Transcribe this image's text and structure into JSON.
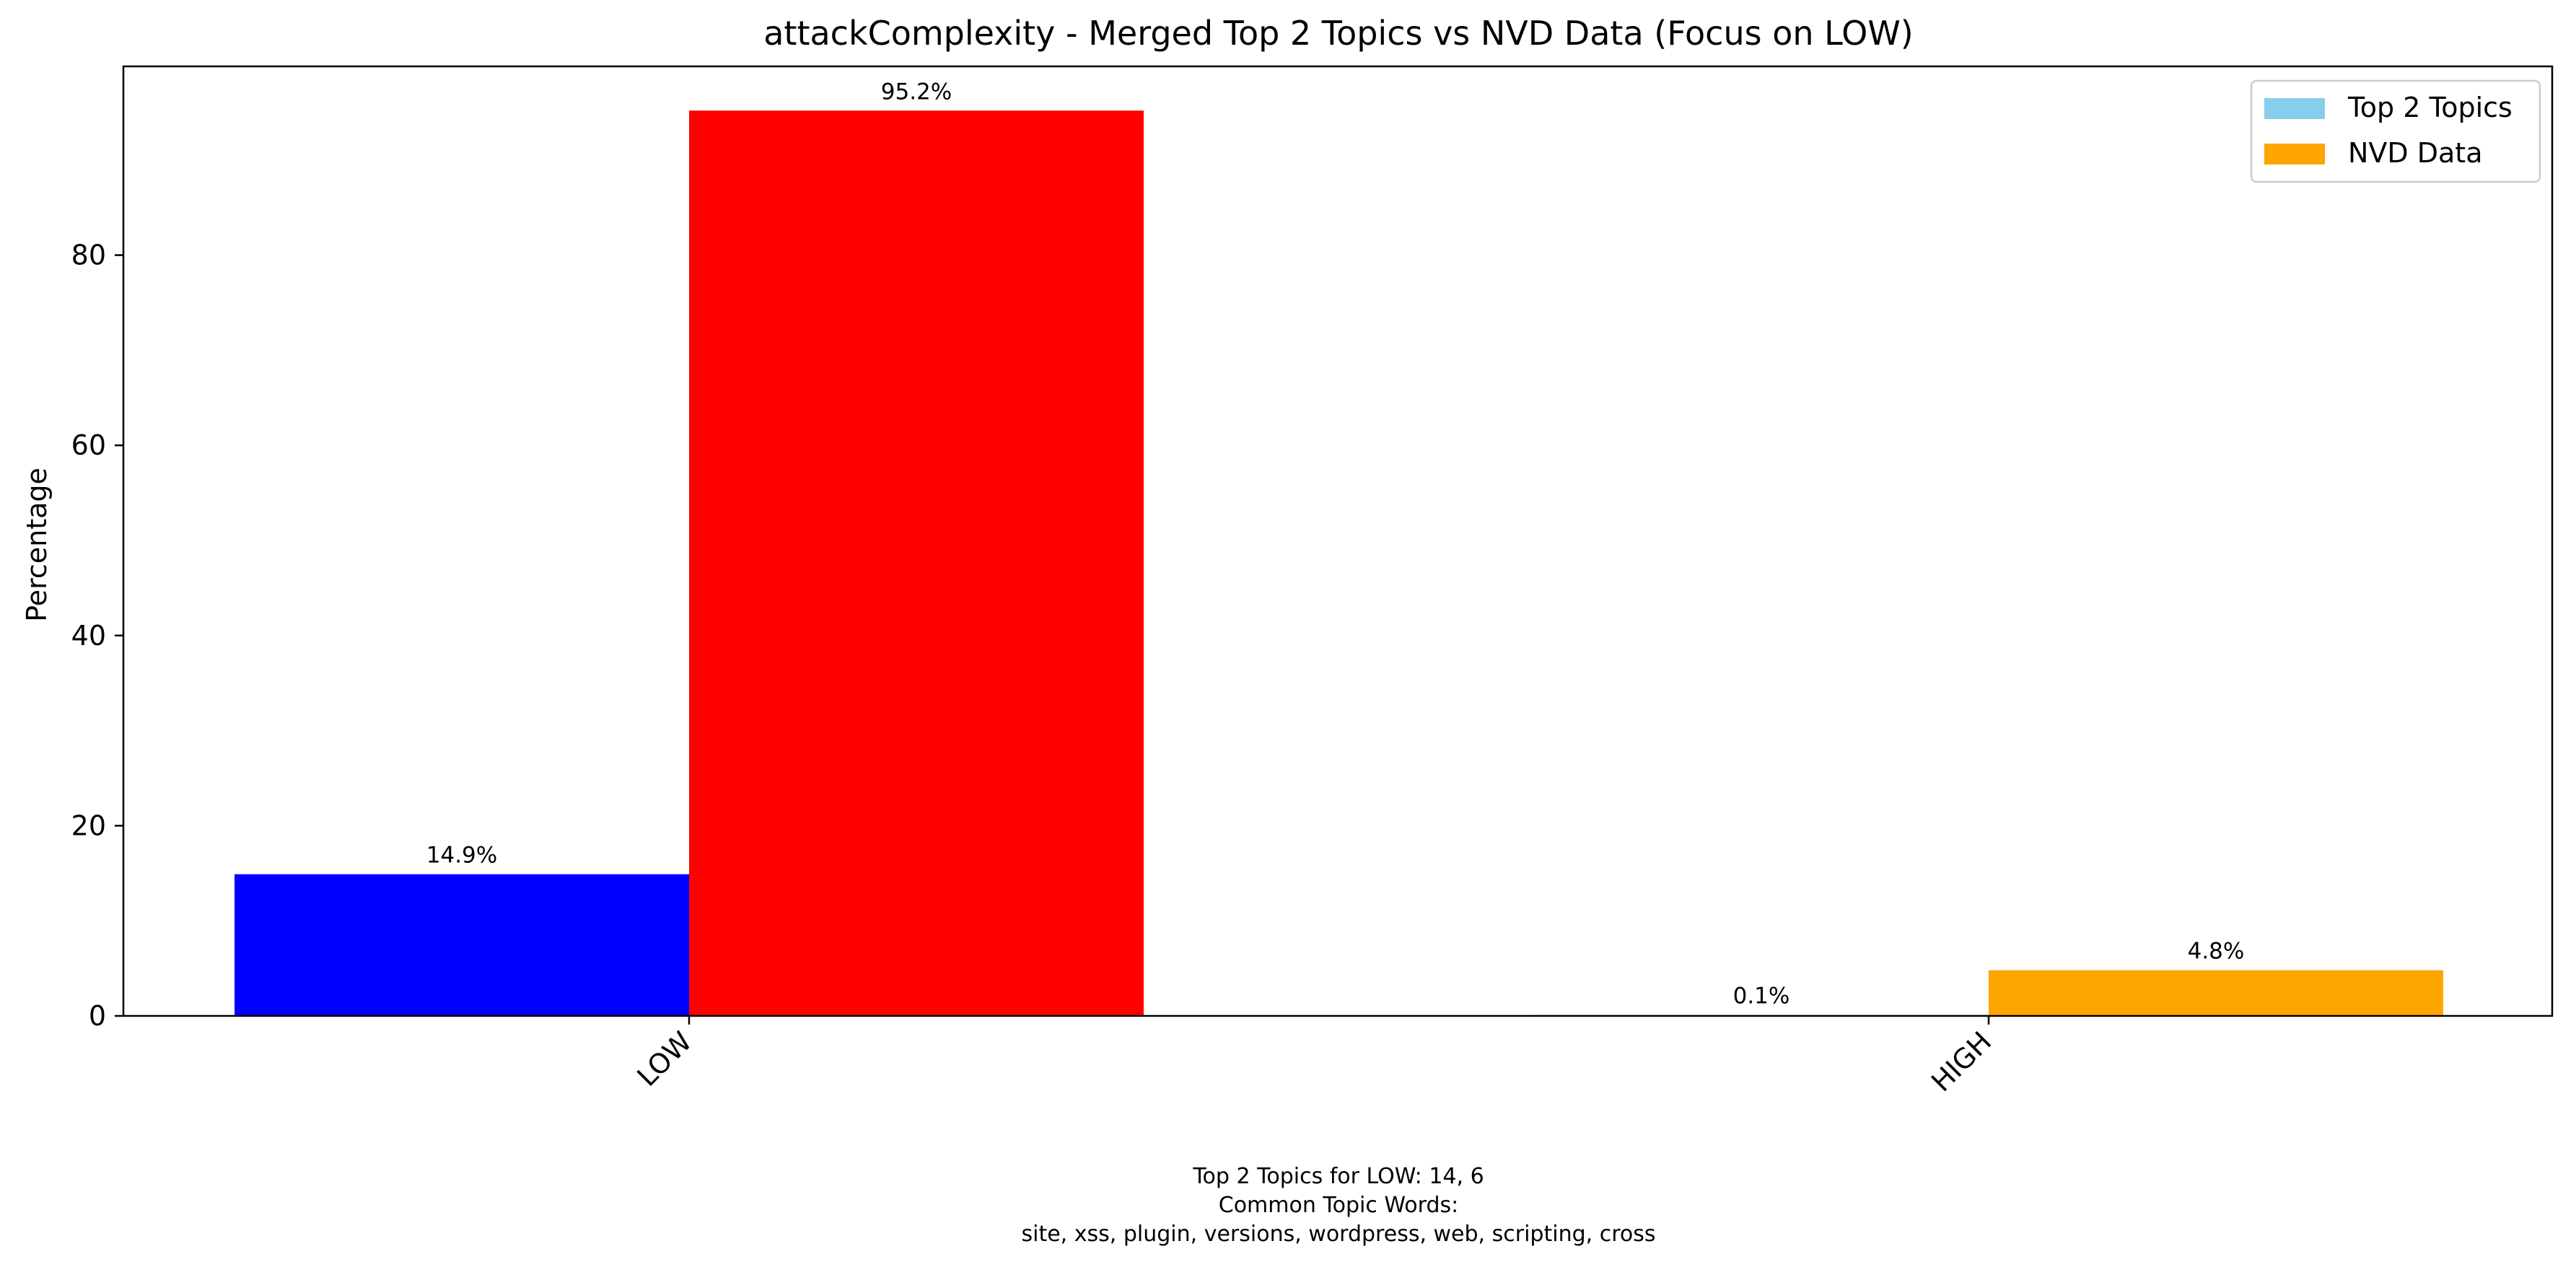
{
  "chart_data": {
    "type": "bar",
    "title": "attackComplexity - Merged Top 2 Topics vs NVD Data (Focus on LOW)",
    "xlabel": "",
    "ylabel": "Percentage",
    "categories": [
      "LOW",
      "HIGH"
    ],
    "series": [
      {
        "name": "Top 2 Topics",
        "legend_color": "#87ceeb",
        "bar_colors": [
          "#0000ff",
          "#87ceeb"
        ],
        "values": [
          14.9,
          0.1
        ],
        "labels": [
          "14.9%",
          "0.1%"
        ]
      },
      {
        "name": "NVD Data",
        "legend_color": "#ffa500",
        "bar_colors": [
          "#ff0000",
          "#ffa500"
        ],
        "values": [
          95.2,
          4.8
        ],
        "labels": [
          "95.2%",
          "4.8%"
        ]
      }
    ],
    "ylim": [
      0,
      100
    ],
    "yticks": [
      0,
      20,
      40,
      60,
      80
    ],
    "grid": false,
    "legend_position": "top-right",
    "footnote": [
      "Top 2 Topics for LOW: 14, 6",
      "Common Topic Words:",
      "site,  xss,  plugin,  versions,  wordpress,  web,  scripting,  cross"
    ]
  }
}
